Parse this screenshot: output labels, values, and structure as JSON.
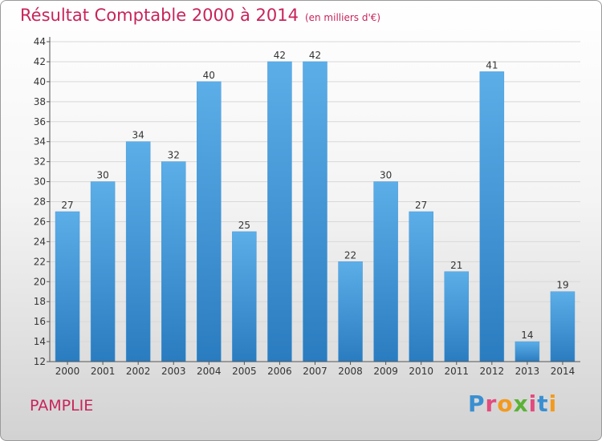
{
  "title": "Résultat Comptable 2000 à 2014",
  "subtitle": "(en milliers d'€)",
  "footer": {
    "place": "PAMPLIE",
    "logo": "Proxiti"
  },
  "colors": {
    "bar_top": "#5caee8",
    "bar_bottom": "#2a7cc0",
    "title": "#c8245a",
    "grid": "#d8d8d8"
  },
  "chart_data": {
    "type": "bar",
    "title": "Résultat Comptable 2000 à 2014",
    "subtitle": "(en milliers d'€)",
    "xlabel": "",
    "ylabel": "",
    "categories": [
      "2000",
      "2001",
      "2002",
      "2003",
      "2004",
      "2005",
      "2006",
      "2007",
      "2008",
      "2009",
      "2010",
      "2011",
      "2012",
      "2013",
      "2014"
    ],
    "values": [
      27,
      30,
      34,
      32,
      40,
      25,
      42,
      42,
      22,
      30,
      27,
      21,
      41,
      14,
      19
    ],
    "ylim": [
      12,
      44
    ],
    "yticks": [
      12,
      14,
      16,
      18,
      20,
      22,
      24,
      26,
      28,
      30,
      32,
      34,
      36,
      38,
      40,
      42,
      44
    ],
    "grid": true,
    "legend": "none"
  }
}
